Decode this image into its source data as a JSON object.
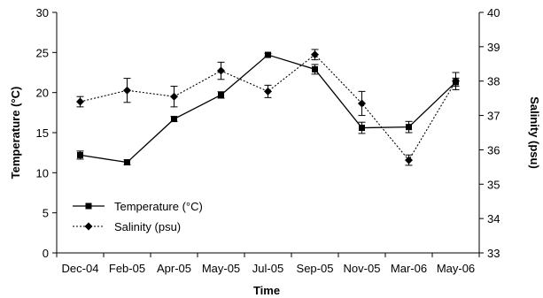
{
  "chart_data": {
    "type": "line",
    "title": "",
    "xlabel": "Time",
    "ylabel_left": "Temperature (°C)",
    "ylabel_right": "Salinity (psu)",
    "categories": [
      "Dec-04",
      "Feb-05",
      "Apr-05",
      "May-05",
      "Jul-05",
      "Sep-05",
      "Nov-05",
      "Mar-06",
      "May-06"
    ],
    "ylim_left": [
      0,
      30
    ],
    "yticks_left": [
      "0",
      "5",
      "10",
      "15",
      "20",
      "25",
      "30"
    ],
    "ylim_right": [
      33,
      40
    ],
    "yticks_right": [
      "33",
      "34",
      "35",
      "36",
      "37",
      "38",
      "39",
      "40"
    ],
    "grid": false,
    "legend_position": "bottom-left",
    "series": [
      {
        "name": "Temperature (°C)",
        "axis": "left",
        "line_style": "solid",
        "marker": "square",
        "values": [
          12.2,
          11.3,
          16.7,
          19.7,
          24.7,
          22.9,
          15.6,
          15.7,
          21.3
        ],
        "errors": [
          0.5,
          0.3,
          0.3,
          0.4,
          0.2,
          0.6,
          0.7,
          0.7,
          0.5
        ]
      },
      {
        "name": "Salinity (psu)",
        "axis": "right",
        "line_style": "dotted",
        "marker": "diamond",
        "values": [
          37.4,
          37.73,
          37.55,
          38.3,
          37.7,
          38.77,
          37.35,
          35.7,
          38.0
        ],
        "errors": [
          0.15,
          0.35,
          0.3,
          0.25,
          0.18,
          0.15,
          0.35,
          0.15,
          0.25
        ]
      }
    ]
  }
}
